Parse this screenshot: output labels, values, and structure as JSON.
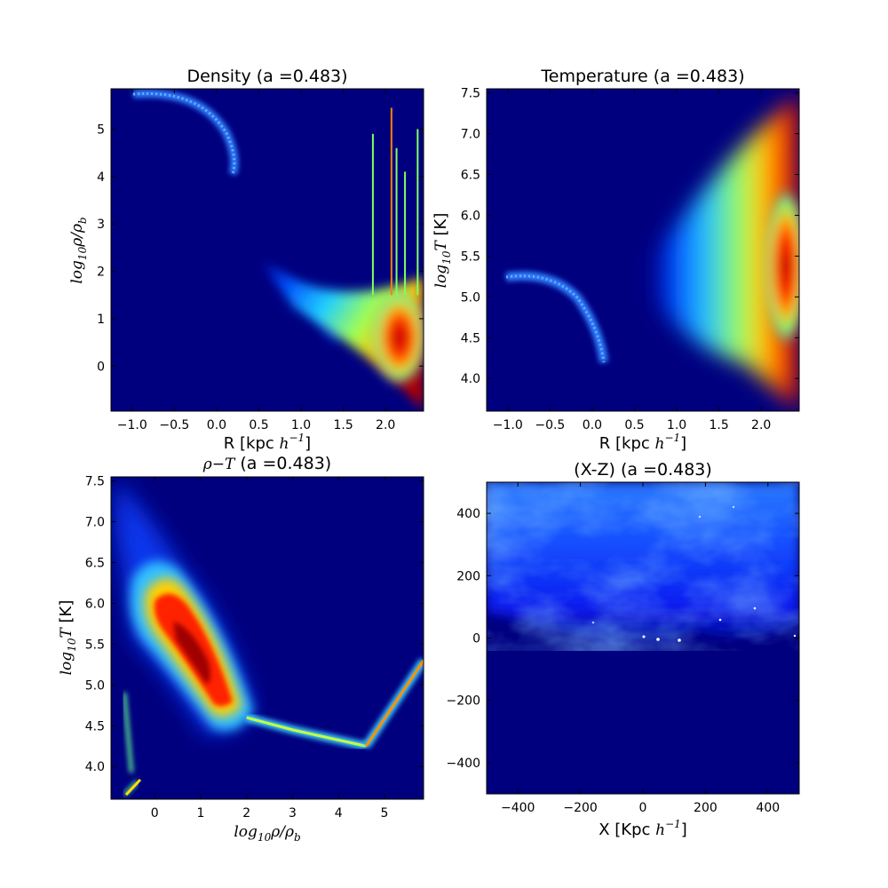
{
  "chart_data": [
    {
      "id": "density",
      "type": "heatmap",
      "title": "Density (a =0.483)",
      "xlabel": "R [kpc h⁻¹]",
      "ylabel": "log10 ρ/ρb",
      "xlim": [
        -1.25,
        2.45
      ],
      "ylim": [
        -0.95,
        5.85
      ],
      "xticks": [
        "−1.0",
        "−0.5",
        "0.0",
        "0.5",
        "1.0",
        "1.5",
        "2.0"
      ],
      "xtick_values": [
        -1.0,
        -0.5,
        0.0,
        0.5,
        1.0,
        1.5,
        2.0
      ],
      "yticks": [
        "0",
        "1",
        "2",
        "3",
        "4",
        "5"
      ],
      "ytick_values": [
        0,
        1,
        2,
        3,
        4,
        5
      ],
      "colormap": "jet",
      "background": "#00007f",
      "features": {
        "arc": {
          "x": [
            -1.0,
            -0.5,
            0.0,
            0.2,
            0.28
          ],
          "y": [
            5.7,
            5.6,
            5.1,
            4.5,
            4.1
          ]
        },
        "filaments_x": [
          1.85,
          2.07,
          2.13,
          2.23,
          2.38
        ],
        "filaments_top": [
          4.9,
          5.45,
          4.6,
          4.1,
          5.0
        ],
        "wedge": {
          "apex": [
            0.6,
            2.0
          ],
          "right_x": 2.45,
          "top_y": 1.9,
          "bottom_y": -0.9
        }
      }
    },
    {
      "id": "temperature",
      "type": "heatmap",
      "title": "Temperature (a =0.483)",
      "xlabel": "R [kpc h⁻¹]",
      "ylabel": "log10 T  [K]",
      "xlim": [
        -1.25,
        2.45
      ],
      "ylim": [
        3.6,
        7.55
      ],
      "xticks": [
        "−1.0",
        "−0.5",
        "0.0",
        "0.5",
        "1.0",
        "1.5",
        "2.0"
      ],
      "xtick_values": [
        -1.0,
        -0.5,
        0.0,
        0.5,
        1.0,
        1.5,
        2.0
      ],
      "yticks": [
        "4.0",
        "4.5",
        "5.0",
        "5.5",
        "6.0",
        "6.5",
        "7.0",
        "7.5"
      ],
      "ytick_values": [
        4.0,
        4.5,
        5.0,
        5.5,
        6.0,
        6.5,
        7.0,
        7.5
      ],
      "colormap": "jet",
      "background": "#00007f",
      "features": {
        "arc": {
          "x": [
            -0.9,
            -0.5,
            -0.2,
            0.05,
            0.18
          ],
          "y": [
            5.25,
            5.2,
            5.0,
            4.6,
            4.25
          ]
        },
        "hot_cloud": {
          "x_from": 0.8,
          "x_to": 2.45,
          "y_center": 5.5
        }
      }
    },
    {
      "id": "rho-T",
      "type": "heatmap",
      "title": "ρ−T (a =0.483)",
      "xlabel": "log10 ρ/ρb",
      "ylabel": "log10 T  [K]",
      "xlim": [
        -0.95,
        5.85
      ],
      "ylim": [
        3.6,
        7.55
      ],
      "xticks": [
        "0",
        "1",
        "2",
        "3",
        "4",
        "5"
      ],
      "xtick_values": [
        0,
        1,
        2,
        3,
        4,
        5
      ],
      "yticks": [
        "4.0",
        "4.5",
        "5.0",
        "5.5",
        "6.0",
        "6.5",
        "7.0",
        "7.5"
      ],
      "ytick_values": [
        4.0,
        4.5,
        5.0,
        5.5,
        6.0,
        6.5,
        7.0,
        7.5
      ],
      "colormap": "jet",
      "background": "#00007f",
      "features": {
        "main_blob": {
          "from": [
            0.0,
            6.2
          ],
          "to": [
            1.8,
            4.6
          ]
        },
        "ridge": {
          "x": [
            2.0,
            3.0,
            4.6
          ],
          "y": [
            4.6,
            4.45,
            4.25
          ]
        },
        "upturn": {
          "x": [
            4.6,
            5.85
          ],
          "y": [
            4.25,
            5.3
          ]
        },
        "cold_tail": {
          "x": [
            -0.95,
            -0.4
          ],
          "y": [
            3.65,
            3.85
          ]
        }
      }
    },
    {
      "id": "x-z",
      "type": "heatmap",
      "title": "(X-Z) (a =0.483)",
      "xlabel": "X [Kpc h⁻¹]",
      "ylabel": "",
      "xlim": [
        -500,
        500
      ],
      "ylim": [
        -500,
        500
      ],
      "xticks": [
        "−400",
        "−200",
        "0",
        "200",
        "400"
      ],
      "xtick_values": [
        -400,
        -200,
        0,
        200,
        400
      ],
      "yticks": [
        "−400",
        "−200",
        "0",
        "200",
        "400"
      ],
      "ytick_values": [
        -400,
        -200,
        0,
        200,
        400
      ],
      "colormap": "blue",
      "background": "#00007f",
      "features": {
        "gas_above_z": 0
      }
    }
  ]
}
